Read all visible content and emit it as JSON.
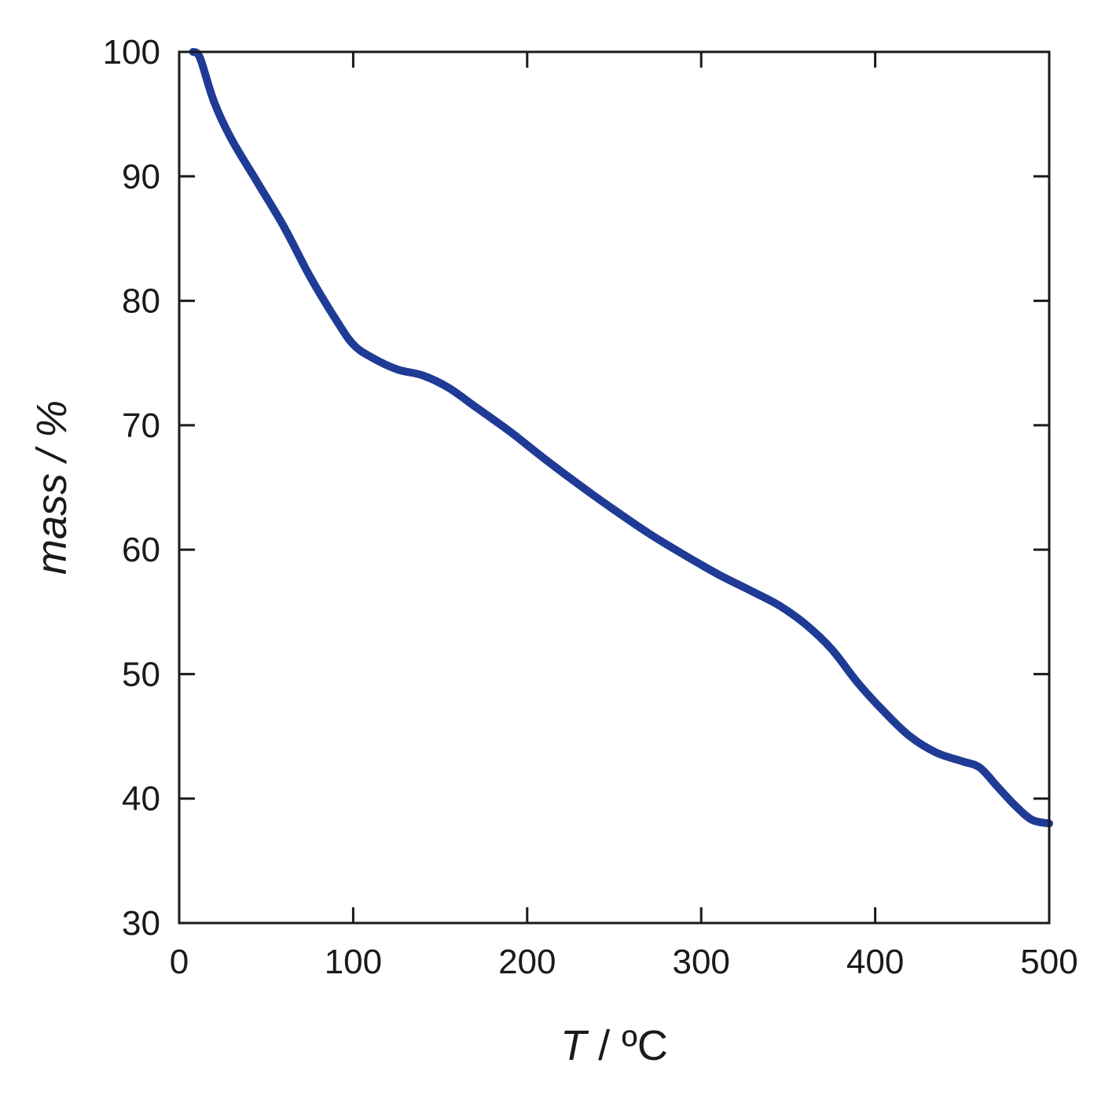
{
  "chart_data": {
    "type": "line",
    "xlabel": {
      "italic": "T",
      "rest": " / ºC"
    },
    "ylabel": "mass / %",
    "xlim": [
      0,
      500
    ],
    "ylim": [
      30,
      100
    ],
    "xticks": [
      "0",
      "100",
      "200",
      "300",
      "400",
      "500"
    ],
    "yticks": [
      "30",
      "40",
      "50",
      "60",
      "70",
      "80",
      "90",
      "100"
    ],
    "grid": false,
    "colors": {
      "series": "#1f3b96",
      "axis": "#1a1a1a"
    },
    "series": [
      {
        "x": [
          8,
          12,
          20,
          30,
          45,
          60,
          75,
          90,
          100,
          110,
          125,
          140,
          155,
          170,
          190,
          210,
          230,
          250,
          270,
          290,
          310,
          330,
          345,
          360,
          375,
          390,
          405,
          420,
          435,
          450,
          460,
          470,
          480,
          490,
          500
        ],
        "y": [
          100,
          99.5,
          96,
          93,
          89.5,
          86,
          82,
          78.5,
          76.5,
          75.5,
          74.5,
          74,
          73,
          71.5,
          69.5,
          67.3,
          65.2,
          63.2,
          61.3,
          59.6,
          58,
          56.6,
          55.5,
          54,
          52,
          49.3,
          47,
          45,
          43.7,
          43,
          42.5,
          41,
          39.5,
          38.3,
          38
        ]
      }
    ]
  }
}
